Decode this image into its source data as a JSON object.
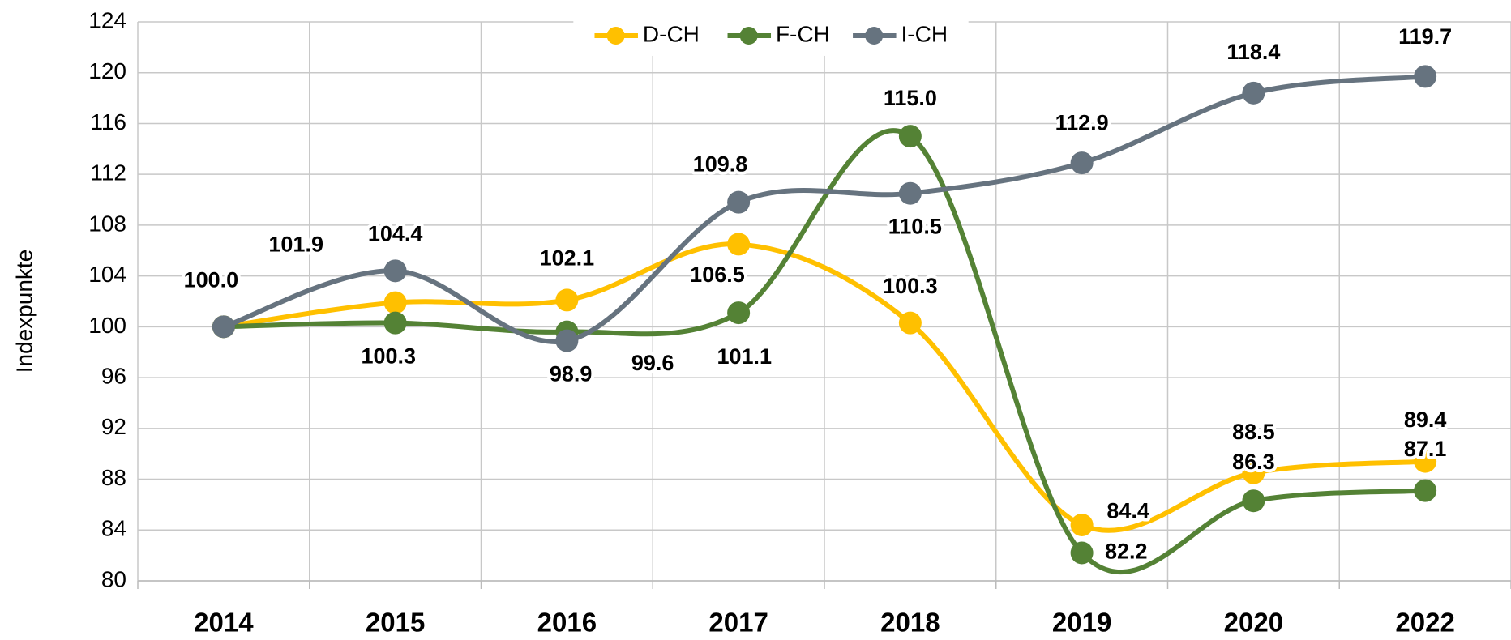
{
  "chart_data": {
    "type": "line",
    "y_label": "Indexpunkte",
    "categories": [
      "2014",
      "2015",
      "2016",
      "2017",
      "2018",
      "2019",
      "2020",
      "2022"
    ],
    "series": [
      {
        "name": "D-CH",
        "color": "#FFC000",
        "values": [
          100.0,
          101.9,
          102.1,
          106.5,
          100.3,
          84.4,
          88.5,
          89.4
        ],
        "value_labels": [
          "100.0",
          "101.9",
          "102.1",
          "106.5",
          "100.3",
          "84.4",
          "88.5",
          "89.4"
        ]
      },
      {
        "name": "F-CH",
        "color": "#548235",
        "values": [
          100.0,
          100.3,
          99.6,
          101.1,
          115.0,
          82.2,
          86.3,
          87.1
        ],
        "value_labels": [
          null,
          "100.3",
          "99.6",
          "101.1",
          "115.0",
          "82.2",
          "86.3",
          "87.1"
        ]
      },
      {
        "name": "I-CH",
        "color": "#66737F",
        "values": [
          100.0,
          104.4,
          98.9,
          109.8,
          110.5,
          112.9,
          118.4,
          119.7
        ],
        "value_labels": [
          null,
          "104.4",
          "98.9",
          "109.8",
          "110.5",
          "112.9",
          "118.4",
          "119.7"
        ]
      }
    ],
    "ylim": [
      80,
      124
    ],
    "yticks": [
      80,
      84,
      88,
      92,
      96,
      100,
      104,
      108,
      112,
      116,
      120,
      124
    ],
    "grid": true,
    "smooth": true,
    "legend": "top"
  }
}
